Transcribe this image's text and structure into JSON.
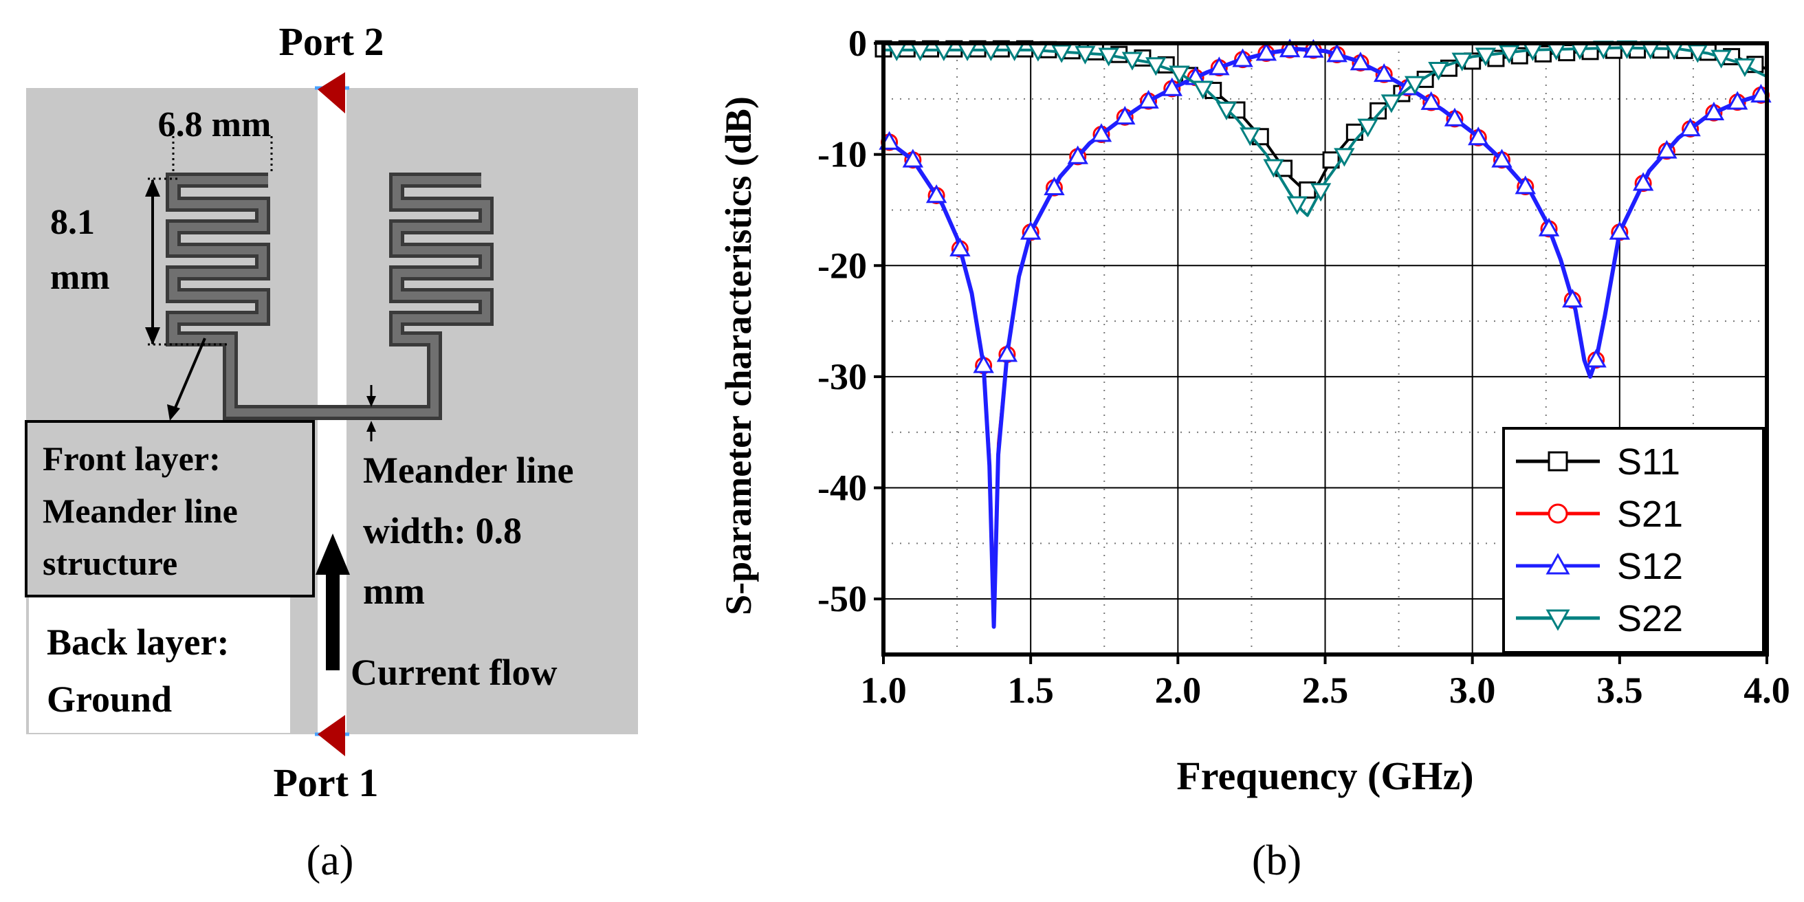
{
  "panel_a": {
    "label": "(a)",
    "port_top": "Port 2",
    "port_bottom": "Port 1",
    "dim_width": "6.8 mm",
    "dim_height_value": "8.1",
    "dim_height_unit": "mm",
    "front_layer": [
      "Front layer:",
      "Meander line",
      "structure"
    ],
    "back_layer": [
      "Back layer:",
      "Ground"
    ],
    "line_width": [
      "Meander line",
      "width: 0.8",
      "mm"
    ],
    "current_flow": "Current flow",
    "colors": {
      "ground": "#c8c8c8",
      "meander": "#6b6b6b",
      "port": "#c00000"
    }
  },
  "chart_data": {
    "type": "line",
    "panel_label": "(b)",
    "xlabel": "Frequency (GHz)",
    "ylabel": "S-parameter characteristics (dB)",
    "xlim": [
      1.0,
      4.0
    ],
    "ylim": [
      -55,
      0
    ],
    "xticks": [
      "1.0",
      "1.5",
      "2.0",
      "2.5",
      "3.0",
      "3.5",
      "4.0"
    ],
    "yticks": [
      "0",
      "-10",
      "-20",
      "-30",
      "-40",
      "-50"
    ],
    "grid": true,
    "legend_position": "bottom-right",
    "series": [
      {
        "name": "S11",
        "color": "#000000",
        "marker": "square",
        "x": [
          1.0,
          1.5,
          1.75,
          1.9,
          2.0,
          2.1,
          2.2,
          2.3,
          2.38,
          2.42,
          2.45,
          2.48,
          2.52,
          2.6,
          2.7,
          2.8,
          2.9,
          3.0,
          3.2,
          3.5,
          3.7,
          3.8,
          3.9,
          4.0
        ],
        "y": [
          -0.5,
          -0.5,
          -0.8,
          -1.4,
          -2.3,
          -3.8,
          -6.0,
          -9.0,
          -12.0,
          -13.0,
          -13.3,
          -12.5,
          -10.5,
          -8.0,
          -5.6,
          -3.8,
          -2.4,
          -1.6,
          -1.0,
          -0.6,
          -0.6,
          -0.8,
          -1.3,
          -2.3
        ]
      },
      {
        "name": "S21",
        "color": "#ff0000",
        "marker": "circle",
        "x": [
          1.0,
          1.1,
          1.2,
          1.25,
          1.3,
          1.34,
          1.36,
          1.375,
          1.39,
          1.42,
          1.46,
          1.5,
          1.6,
          1.7,
          1.8,
          1.9,
          2.0,
          2.1,
          2.2,
          2.3,
          2.4,
          2.5,
          2.6,
          2.7,
          2.8,
          2.9,
          3.0,
          3.1,
          3.2,
          3.25,
          3.3,
          3.35,
          3.38,
          3.4,
          3.42,
          3.45,
          3.5,
          3.6,
          3.7,
          3.8,
          3.9,
          4.0
        ],
        "y": [
          -8.5,
          -10.5,
          -14.5,
          -17.5,
          -22.5,
          -29.0,
          -37.0,
          -50.0,
          -36.0,
          -28.0,
          -21.0,
          -17.0,
          -12.0,
          -9.0,
          -7.0,
          -5.2,
          -3.8,
          -2.6,
          -1.6,
          -0.9,
          -0.5,
          -0.7,
          -1.5,
          -2.8,
          -4.3,
          -6.0,
          -8.0,
          -10.5,
          -13.5,
          -16.0,
          -19.5,
          -24.0,
          -28.5,
          -30.0,
          -28.5,
          -24.5,
          -17.0,
          -11.5,
          -8.5,
          -6.5,
          -5.3,
          -4.5
        ]
      },
      {
        "name": "S12",
        "color": "#1f1fff",
        "marker": "triangle-up",
        "x": [
          1.0,
          1.1,
          1.2,
          1.25,
          1.3,
          1.34,
          1.36,
          1.375,
          1.39,
          1.42,
          1.46,
          1.5,
          1.6,
          1.7,
          1.8,
          1.9,
          2.0,
          2.1,
          2.2,
          2.3,
          2.4,
          2.5,
          2.6,
          2.7,
          2.8,
          2.9,
          3.0,
          3.1,
          3.2,
          3.25,
          3.3,
          3.35,
          3.38,
          3.4,
          3.42,
          3.45,
          3.5,
          3.6,
          3.7,
          3.8,
          3.9,
          4.0
        ],
        "y": [
          -8.5,
          -10.5,
          -14.5,
          -17.5,
          -22.5,
          -29.0,
          -38.0,
          -52.5,
          -37.0,
          -28.0,
          -21.0,
          -17.0,
          -12.0,
          -9.0,
          -7.0,
          -5.2,
          -3.8,
          -2.6,
          -1.6,
          -0.9,
          -0.5,
          -0.7,
          -1.5,
          -2.8,
          -4.3,
          -6.0,
          -8.0,
          -10.5,
          -13.5,
          -16.0,
          -19.5,
          -24.0,
          -28.5,
          -30.0,
          -28.5,
          -24.5,
          -17.0,
          -11.5,
          -8.5,
          -6.5,
          -5.3,
          -4.5
        ]
      },
      {
        "name": "S22",
        "color": "#008080",
        "marker": "triangle-down",
        "x": [
          1.0,
          1.5,
          1.75,
          1.9,
          2.0,
          2.1,
          2.2,
          2.3,
          2.38,
          2.42,
          2.44,
          2.46,
          2.5,
          2.6,
          2.7,
          2.8,
          2.9,
          3.0,
          3.2,
          3.5,
          3.7,
          3.8,
          3.9,
          4.0
        ],
        "y": [
          -0.6,
          -0.6,
          -1.0,
          -1.7,
          -2.6,
          -4.3,
          -6.8,
          -10.0,
          -13.5,
          -15.0,
          -15.5,
          -14.5,
          -12.5,
          -8.8,
          -5.8,
          -3.7,
          -2.1,
          -1.2,
          -0.6,
          -0.4,
          -0.5,
          -0.9,
          -1.7,
          -3.0
        ]
      }
    ]
  }
}
